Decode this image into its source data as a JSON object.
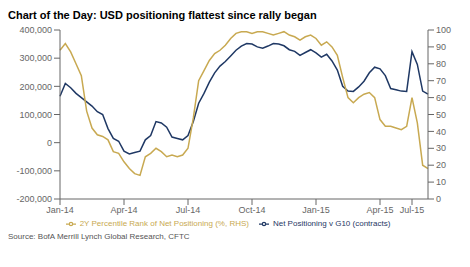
{
  "chart_data": {
    "type": "line",
    "title": "Chart of the Day: USD positioning flattest since rally began",
    "source": "Source: BofA Merrill Lynch Global Research, CFTC",
    "categories": [
      "Jan-14",
      null,
      null,
      null,
      null,
      null,
      null,
      null,
      null,
      null,
      null,
      null,
      "Apr-14",
      null,
      null,
      null,
      null,
      null,
      null,
      null,
      null,
      null,
      null,
      null,
      "Jul-14",
      null,
      null,
      null,
      null,
      null,
      null,
      null,
      null,
      null,
      null,
      null,
      "Oct-14",
      null,
      null,
      null,
      null,
      null,
      null,
      null,
      null,
      null,
      null,
      null,
      "Jan-15",
      null,
      null,
      null,
      null,
      null,
      null,
      null,
      null,
      null,
      null,
      null,
      "Apr-15",
      null,
      null,
      null,
      null,
      null,
      "Jul-15",
      null,
      null,
      null
    ],
    "series": [
      {
        "name": "Net Positioning v G10 (contracts)",
        "color": "#1F3864",
        "values": [
          165000,
          210000,
          195000,
          175000,
          160000,
          145000,
          130000,
          110000,
          100000,
          50000,
          15000,
          5000,
          -30000,
          -40000,
          -35000,
          -30000,
          10000,
          25000,
          75000,
          70000,
          55000,
          20000,
          15000,
          10000,
          25000,
          75000,
          140000,
          175000,
          215000,
          248000,
          272000,
          288000,
          308000,
          328000,
          343000,
          352000,
          350000,
          340000,
          335000,
          343000,
          352000,
          350000,
          344000,
          330000,
          324000,
          310000,
          320000,
          330000,
          319000,
          304000,
          314000,
          290000,
          258000,
          200000,
          183000,
          182000,
          198000,
          218000,
          248000,
          268000,
          262000,
          238000,
          192000,
          188000,
          183000,
          182000,
          323000,
          278000,
          183000,
          172000
        ]
      },
      {
        "name": "2Y Percentile Rank of Net Positioning (%, RHS)",
        "color": "#C8A951",
        "axis": "y2",
        "values": [
          88,
          92,
          87,
          80,
          73,
          52,
          42,
          38,
          37,
          35,
          28,
          27,
          22,
          18,
          15,
          14,
          25,
          27,
          30,
          28,
          25,
          26,
          25,
          26,
          30,
          48,
          70,
          76,
          82,
          86,
          88,
          91,
          95,
          98,
          99,
          99,
          98,
          99,
          99,
          98,
          97,
          98,
          99,
          97,
          96,
          94,
          96,
          97,
          95,
          91,
          93,
          90,
          85,
          72,
          60,
          57,
          60,
          62,
          63,
          60,
          47,
          43,
          43,
          42,
          41,
          43,
          60,
          45,
          20,
          18
        ]
      }
    ],
    "ylim": [
      -200000,
      400000
    ],
    "yticks": [
      {
        "value": -200000,
        "label": "-200,000"
      },
      {
        "value": -100000,
        "label": "-100,000"
      },
      0,
      {
        "value": 100000,
        "label": "100,000"
      },
      {
        "value": 200000,
        "label": "200,000"
      },
      {
        "value": 300000,
        "label": "300,000"
      },
      {
        "value": 400000,
        "label": "400,000"
      }
    ],
    "y2lim": [
      0,
      100
    ],
    "y2ticks": [
      0,
      10,
      20,
      30,
      40,
      50,
      60,
      70,
      80,
      90,
      100
    ],
    "grid": false,
    "legend": "bottom"
  }
}
